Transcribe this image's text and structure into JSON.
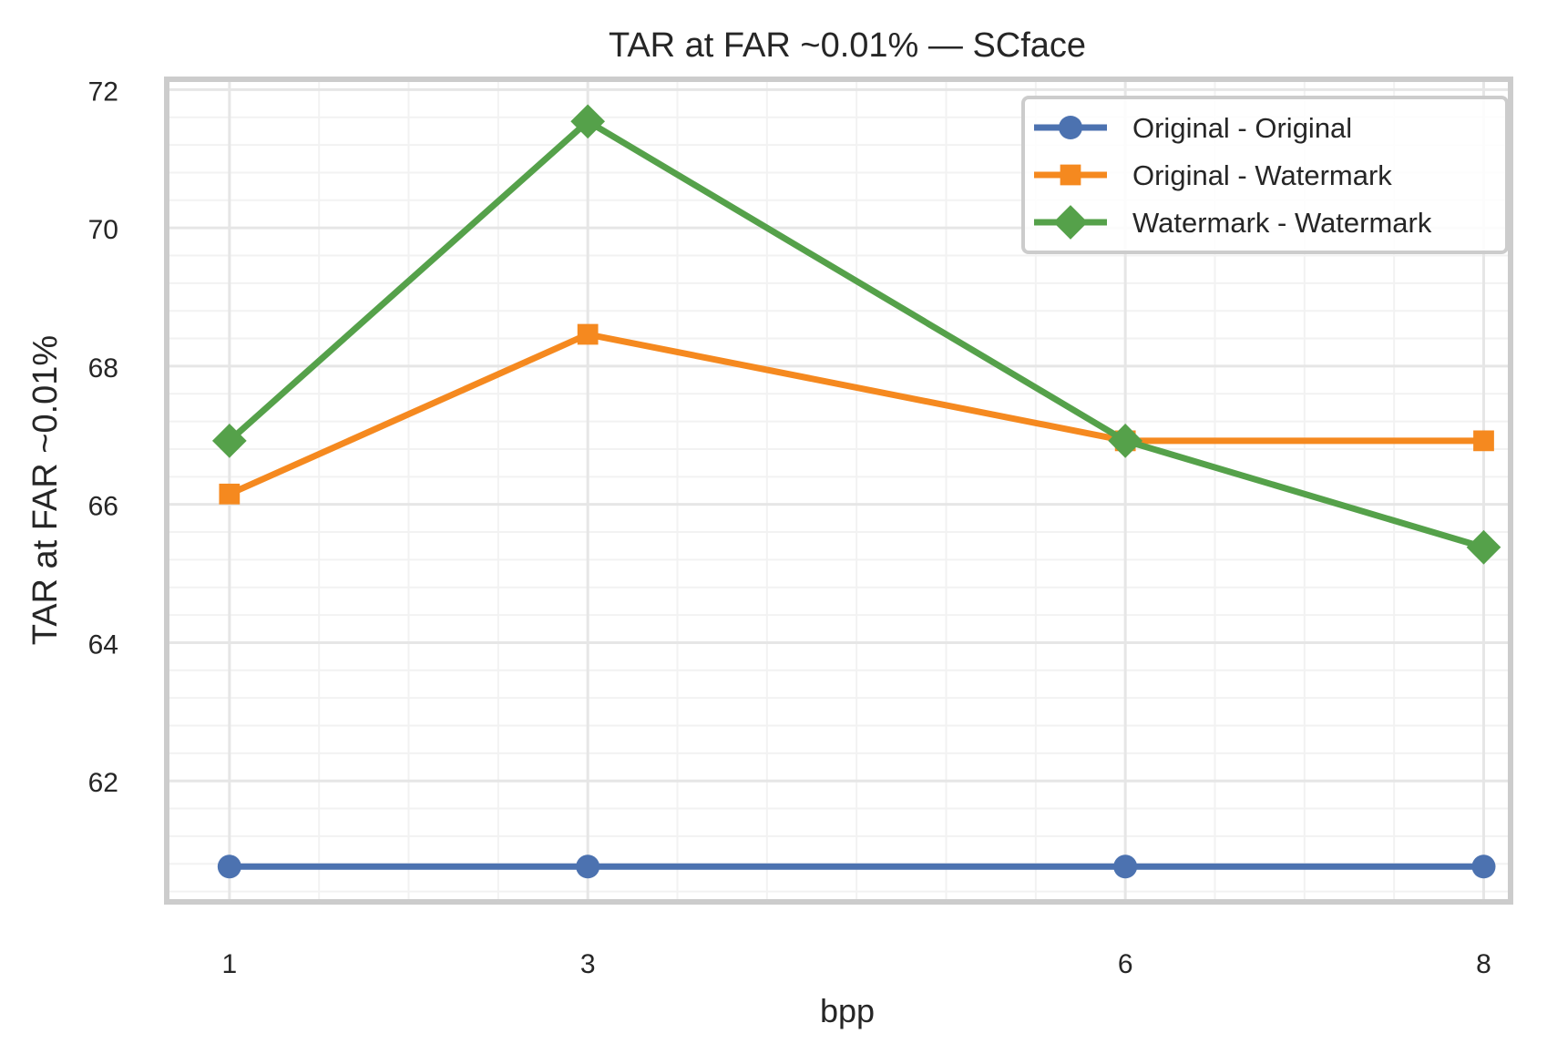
{
  "chart_data": {
    "type": "line",
    "title": "TAR at FAR ~0.01% — SCface",
    "xlabel": "bpp",
    "ylabel": "TAR at FAR ~0.01%",
    "x": [
      1,
      3,
      6,
      8
    ],
    "xticks": [
      "1",
      "3",
      "6",
      "8"
    ],
    "xlim": [
      0.65,
      8.15
    ],
    "ylim": [
      60.25,
      72.15
    ],
    "yticks": [
      "62",
      "64",
      "66",
      "68",
      "70",
      "72"
    ],
    "grid": true,
    "legend_position": "top-right",
    "series": [
      {
        "name": "Original - Original",
        "marker": "circle",
        "color": "#4c72b0",
        "values": [
          60.76,
          60.76,
          60.76,
          60.76
        ]
      },
      {
        "name": "Original - Watermark",
        "marker": "square",
        "color": "#f5891f",
        "values": [
          66.15,
          68.46,
          66.92,
          66.92
        ]
      },
      {
        "name": "Watermark - Watermark",
        "marker": "diamond",
        "color": "#55a14a",
        "values": [
          66.92,
          71.54,
          66.92,
          65.38
        ]
      }
    ]
  }
}
